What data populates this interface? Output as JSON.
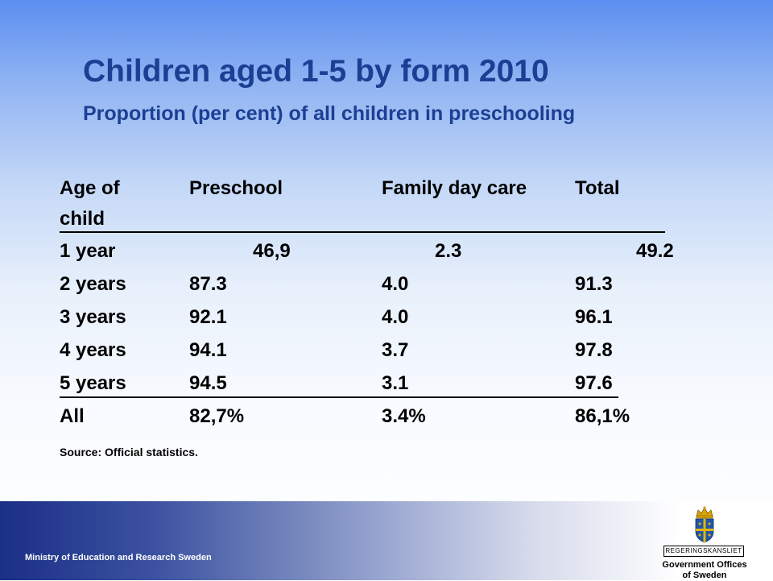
{
  "slide": {
    "title": "Children aged 1-5 by form 2010",
    "subtitle": "Proportion (per cent) of all children in preschooling"
  },
  "table": {
    "headers": [
      "Age of child",
      "Preschool",
      "Family day care",
      "Total"
    ],
    "rows": [
      [
        "1 year",
        "46,9",
        "2.3",
        "49.2"
      ],
      [
        "2 years",
        "87.3",
        "4.0",
        "91.3"
      ],
      [
        "3 years",
        "92.1",
        "4.0",
        "96.1"
      ],
      [
        "4 years",
        "94.1",
        "3.7",
        "97.8"
      ],
      [
        "5 years",
        "94.5",
        "3.1",
        "97.6"
      ],
      [
        "All",
        "82,7%",
        "3.4%",
        "86,1%"
      ]
    ]
  },
  "source": "Source: Official statistics.",
  "footer": {
    "ministry": "Ministry of Education and Research Sweden",
    "logo": {
      "name": "REGERINGSKANSLIET",
      "line1": "Government Offices",
      "line2": "of Sweden",
      "icon": "swedish-crown-shield-icon"
    }
  },
  "colors": {
    "title": "#1c3f94",
    "text": "#000000",
    "footer_dark": "#1a2f86"
  }
}
